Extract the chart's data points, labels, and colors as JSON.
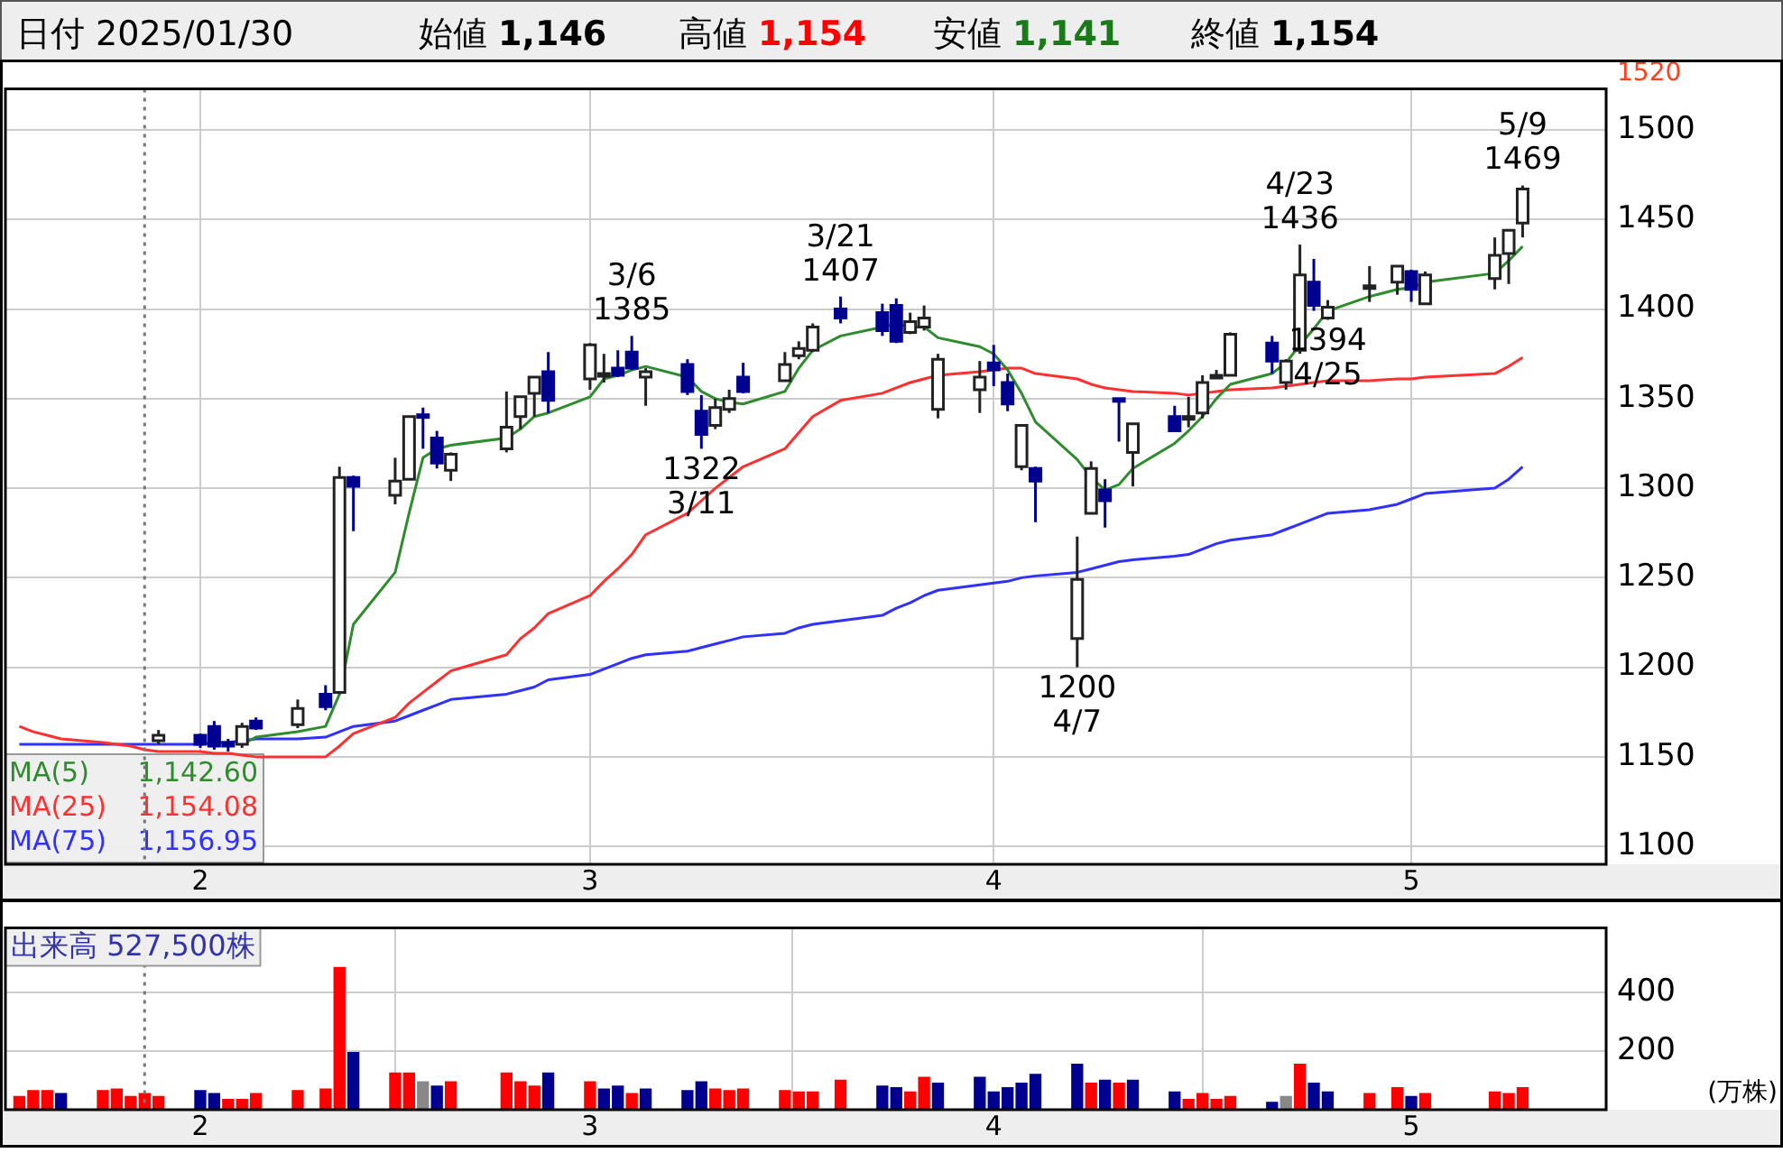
{
  "chart_data": [
    {
      "type": "candlestick",
      "x": [
        "2025-01-21",
        "2025-01-22",
        "2025-01-23",
        "2025-01-24",
        "2025-01-27",
        "2025-01-28",
        "2025-01-29",
        "2025-01-30",
        "2025-01-31",
        "2025-02-03",
        "2025-02-04",
        "2025-02-05",
        "2025-02-06",
        "2025-02-07",
        "2025-02-10",
        "2025-02-12",
        "2025-02-13",
        "2025-02-14",
        "2025-02-17",
        "2025-02-18",
        "2025-02-19",
        "2025-02-20",
        "2025-02-21",
        "2025-02-25",
        "2025-02-26",
        "2025-02-27",
        "2025-02-28",
        "2025-03-03",
        "2025-03-04",
        "2025-03-05",
        "2025-03-06",
        "2025-03-07",
        "2025-03-10",
        "2025-03-11",
        "2025-03-12",
        "2025-03-13",
        "2025-03-14",
        "2025-03-17",
        "2025-03-18",
        "2025-03-19",
        "2025-03-21",
        "2025-03-24",
        "2025-03-25",
        "2025-03-26",
        "2025-03-27",
        "2025-03-28",
        "2025-03-31",
        "2025-04-01",
        "2025-04-02",
        "2025-04-03",
        "2025-04-04",
        "2025-04-07",
        "2025-04-08",
        "2025-04-09",
        "2025-04-10",
        "2025-04-11",
        "2025-04-14",
        "2025-04-15",
        "2025-04-16",
        "2025-04-17",
        "2025-04-18",
        "2025-04-21",
        "2025-04-22",
        "2025-04-23",
        "2025-04-24",
        "2025-04-25",
        "2025-04-28",
        "2025-04-30",
        "2025-05-01",
        "2025-05-02",
        "2025-05-07",
        "2025-05-08",
        "2025-05-09"
      ],
      "ohlc": [
        null,
        null,
        null,
        null,
        null,
        null,
        null,
        null,
        [
          1159,
          1165,
          1157,
          1162
        ],
        [
          1162,
          1163,
          1155,
          1157
        ],
        [
          1167,
          1170,
          1154,
          1156
        ],
        [
          1158,
          1160,
          1153,
          1156
        ],
        [
          1157,
          1169,
          1155,
          1167
        ],
        [
          1170,
          1172,
          1165,
          1166
        ],
        [
          1168,
          1182,
          1166,
          1177
        ],
        [
          1185,
          1190,
          1176,
          1178
        ],
        [
          1186,
          1312,
          1185,
          1306
        ],
        [
          1306,
          1307,
          1276,
          1301
        ],
        [
          1296,
          1317,
          1291,
          1304
        ],
        [
          1305,
          1340,
          1305,
          1340
        ],
        [
          1341,
          1345,
          1322,
          1340
        ],
        [
          1328,
          1332,
          1311,
          1314
        ],
        [
          1310,
          1320,
          1304,
          1319
        ],
        [
          1322,
          1354,
          1320,
          1334
        ],
        [
          1340,
          1351,
          1333,
          1351
        ],
        [
          1353,
          1362,
          1340,
          1362
        ],
        [
          1365,
          1376,
          1342,
          1349
        ],
        [
          1361,
          1381,
          1355,
          1380
        ],
        [
          1363,
          1375,
          1359,
          1364
        ],
        [
          1367,
          1377,
          1362,
          1363
        ],
        [
          1376,
          1385,
          1366,
          1367
        ],
        [
          1362,
          1367,
          1346,
          1365
        ],
        [
          1369,
          1372,
          1352,
          1354
        ],
        [
          1343,
          1352,
          1322,
          1330
        ],
        [
          1335,
          1350,
          1333,
          1345
        ],
        [
          1344,
          1355,
          1342,
          1350
        ],
        [
          1362,
          1370,
          1353,
          1354
        ],
        [
          1360,
          1376,
          1360,
          1369
        ],
        [
          1374,
          1382,
          1372,
          1378
        ],
        [
          1377,
          1392,
          1376,
          1390
        ],
        [
          1400,
          1407,
          1392,
          1395
        ],
        [
          1398,
          1403,
          1385,
          1388
        ],
        [
          1402,
          1406,
          1381,
          1382
        ],
        [
          1387,
          1398,
          1386,
          1393
        ],
        [
          1390,
          1402,
          1388,
          1395
        ],
        [
          1344,
          1375,
          1339,
          1372
        ],
        [
          1355,
          1371,
          1342,
          1362
        ],
        [
          1370,
          1380,
          1357,
          1366
        ],
        [
          1359,
          1364,
          1343,
          1347
        ],
        [
          1312,
          1335,
          1310,
          1335
        ],
        [
          1311,
          1312,
          1281,
          1304
        ],
        [
          1216,
          1273,
          1200,
          1249
        ],
        [
          1286,
          1315,
          1286,
          1311
        ],
        [
          1299,
          1305,
          1278,
          1293
        ],
        [
          1350,
          1350,
          1326,
          1349
        ],
        [
          1320,
          1336,
          1301,
          1336
        ],
        [
          1340,
          1346,
          1332,
          1332
        ],
        [
          1339,
          1351,
          1334,
          1340
        ],
        [
          1342,
          1363,
          1339,
          1359
        ],
        [
          1362,
          1366,
          1361,
          1363
        ],
        [
          1363,
          1387,
          1363,
          1386
        ],
        [
          1381,
          1385,
          1364,
          1371
        ],
        [
          1359,
          1372,
          1355,
          1371
        ],
        [
          1377,
          1436,
          1375,
          1419
        ],
        [
          1415,
          1428,
          1399,
          1402
        ],
        [
          1395,
          1405,
          1394,
          1401
        ],
        [
          1412,
          1424,
          1404,
          1413
        ],
        [
          1415,
          1424,
          1408,
          1424
        ],
        [
          1421,
          1422,
          1404,
          1411
        ],
        [
          1403,
          1421,
          1403,
          1419
        ],
        [
          1417,
          1440,
          1411,
          1430
        ],
        [
          1431,
          1444,
          1414,
          1444
        ],
        [
          1448,
          1469,
          1440,
          1467
        ]
      ],
      "series": [
        {
          "type": "line",
          "name": "MA(5)",
          "color": "#2e8b2e",
          "values": [
            null,
            null,
            null,
            null,
            null,
            null,
            null,
            null,
            null,
            null,
            null,
            null,
            1157,
            1161,
            1164,
            1167,
            1185,
            1224,
            1253,
            1286,
            1317,
            1322,
            1324,
            1328,
            1333,
            1340,
            1342,
            1351,
            1361,
            1363,
            1366,
            1368,
            1362,
            1354,
            1350,
            1348,
            1347,
            1354,
            1367,
            1377,
            1385,
            1390,
            1392,
            1390,
            1390,
            1384,
            1379,
            1375,
            1366,
            1353,
            1337,
            1316,
            1306,
            1299,
            1302,
            1311,
            1325,
            1332,
            1340,
            1350,
            1358,
            1364,
            1370,
            1380,
            1389,
            1399,
            1407,
            1411,
            1412,
            1415,
            1420,
            1427,
            1435
          ]
        },
        {
          "type": "line",
          "name": "MA(25)",
          "color": "#ff3030",
          "values": [
            1167,
            1164,
            1162,
            1160,
            1158,
            1157,
            1156,
            1154,
            1153,
            1153,
            1152,
            1152,
            1151,
            1150,
            1150,
            1150,
            1156,
            1163,
            1172,
            1180,
            1186,
            1192,
            1198,
            1207,
            1216,
            1222,
            1230,
            1240,
            1248,
            1255,
            1263,
            1274,
            1286,
            1293,
            1300,
            1306,
            1312,
            1322,
            1331,
            1340,
            1349,
            1353,
            1356,
            1359,
            1361,
            1363,
            1365,
            1366,
            1367,
            1367,
            1364,
            1361,
            1358,
            1356,
            1355,
            1354,
            1353,
            1352,
            1353,
            1354,
            1355,
            1356,
            1357,
            1358,
            1359,
            1360,
            1360,
            1361,
            1361,
            1362,
            1364,
            1368,
            1373
          ]
        },
        {
          "type": "line",
          "name": "MA(75)",
          "color": "#3030ff",
          "values": [
            1157,
            1157,
            1157,
            1157,
            1157,
            1157,
            1157,
            1157,
            1157,
            1157,
            1158,
            1158,
            1159,
            1160,
            1160,
            1161,
            1164,
            1167,
            1170,
            1173,
            1176,
            1179,
            1182,
            1185,
            1187,
            1189,
            1193,
            1196,
            1199,
            1202,
            1205,
            1207,
            1209,
            1211,
            1213,
            1215,
            1217,
            1219,
            1222,
            1224,
            1226,
            1229,
            1233,
            1236,
            1240,
            1243,
            1246,
            1247,
            1248,
            1250,
            1251,
            1253,
            1255,
            1257,
            1259,
            1260,
            1262,
            1263,
            1266,
            1269,
            1271,
            1274,
            1277,
            1280,
            1283,
            1286,
            1288,
            1291,
            1294,
            1297,
            1300,
            1305,
            1312
          ]
        }
      ],
      "xlim": [
        "2025-01-20",
        "2025-05-15"
      ],
      "ylim": [
        1090,
        1523
      ],
      "yticks": [
        1100,
        1150,
        1200,
        1250,
        1300,
        1350,
        1400,
        1450,
        1500
      ],
      "xticks": [
        {
          "value": "2025-02-03",
          "label": "2"
        },
        {
          "value": "2025-03-03",
          "label": "3"
        },
        {
          "value": "2025-04-01",
          "label": "4"
        },
        {
          "value": "2025-05-01",
          "label": "5"
        }
      ],
      "grid": true,
      "legend": "bottom left",
      "ref_lines": [
        {
          "axis": "x",
          "value": "2025-01-30",
          "color": "#777777",
          "line_style": "dotted"
        }
      ],
      "annotations": [
        "日付 2025/01/30",
        "始値 1,146",
        "高値 1,154",
        "安値 1,141",
        "終値 1,154",
        "1,142.60",
        "1,154.08",
        "1,156.95",
        "1520",
        {
          "text": "3/6 1385",
          "x": "2025-03-06",
          "y": 1385
        },
        {
          "text": "1322 3/11",
          "x": "2025-03-11",
          "y": 1322
        },
        {
          "text": "3/21 1407",
          "x": "2025-03-21",
          "y": 1407
        },
        {
          "text": "1200 4/7",
          "x": "2025-04-07",
          "y": 1200
        },
        {
          "text": "4/23 1436",
          "x": "2025-04-23",
          "y": 1436
        },
        {
          "text": "1394 4/25",
          "x": "2025-04-25",
          "y": 1394
        },
        {
          "text": "5/9 1469",
          "x": "2025-05-09",
          "y": 1469
        }
      ]
    },
    {
      "type": "bar",
      "x": [
        "2025-01-21",
        "2025-01-22",
        "2025-01-23",
        "2025-01-24",
        "2025-01-27",
        "2025-01-28",
        "2025-01-29",
        "2025-01-30",
        "2025-01-31",
        "2025-02-03",
        "2025-02-04",
        "2025-02-05",
        "2025-02-06",
        "2025-02-07",
        "2025-02-10",
        "2025-02-12",
        "2025-02-13",
        "2025-02-14",
        "2025-02-17",
        "2025-02-18",
        "2025-02-19",
        "2025-02-20",
        "2025-02-21",
        "2025-02-25",
        "2025-02-26",
        "2025-02-27",
        "2025-02-28",
        "2025-03-03",
        "2025-03-04",
        "2025-03-05",
        "2025-03-06",
        "2025-03-07",
        "2025-03-10",
        "2025-03-11",
        "2025-03-12",
        "2025-03-13",
        "2025-03-14",
        "2025-03-17",
        "2025-03-18",
        "2025-03-19",
        "2025-03-21",
        "2025-03-24",
        "2025-03-25",
        "2025-03-26",
        "2025-03-27",
        "2025-03-28",
        "2025-03-31",
        "2025-04-01",
        "2025-04-02",
        "2025-04-03",
        "2025-04-04",
        "2025-04-07",
        "2025-04-08",
        "2025-04-09",
        "2025-04-10",
        "2025-04-11",
        "2025-04-14",
        "2025-04-15",
        "2025-04-16",
        "2025-04-17",
        "2025-04-18",
        "2025-04-21",
        "2025-04-22",
        "2025-04-23",
        "2025-04-24",
        "2025-04-25",
        "2025-04-28",
        "2025-04-30",
        "2025-05-01",
        "2025-05-02",
        "2025-05-07",
        "2025-05-08",
        "2025-05-09"
      ],
      "values": [
        45,
        65,
        65,
        55,
        65,
        70,
        45,
        55,
        45,
        65,
        55,
        35,
        35,
        55,
        65,
        70,
        485,
        195,
        125,
        125,
        95,
        80,
        95,
        125,
        95,
        80,
        125,
        95,
        70,
        80,
        55,
        70,
        65,
        95,
        70,
        65,
        70,
        65,
        60,
        60,
        100,
        80,
        75,
        60,
        110,
        90,
        110,
        60,
        75,
        90,
        120,
        155,
        90,
        100,
        90,
        100,
        60,
        35,
        55,
        35,
        45,
        25,
        45,
        155,
        90,
        60,
        55,
        75,
        45,
        55,
        60,
        55,
        75
      ],
      "colors": [
        "#ff0000",
        "#ff0000",
        "#ff0000",
        "#000090",
        "#ff0000",
        "#ff0000",
        "#ff0000",
        "#ff0000",
        "#ff0000",
        "#000090",
        "#000090",
        "#ff0000",
        "#ff0000",
        "#ff0000",
        "#ff0000",
        "#ff0000",
        "#ff0000",
        "#000090",
        "#ff0000",
        "#ff0000",
        "#888888",
        "#000090",
        "#ff0000",
        "#ff0000",
        "#ff0000",
        "#ff0000",
        "#000090",
        "#ff0000",
        "#000090",
        "#000090",
        "#ff0000",
        "#000090",
        "#000090",
        "#000090",
        "#ff0000",
        "#ff0000",
        "#ff0000",
        "#ff0000",
        "#ff0000",
        "#ff0000",
        "#ff0000",
        "#000090",
        "#000090",
        "#ff0000",
        "#ff0000",
        "#000090",
        "#000090",
        "#000090",
        "#000090",
        "#000090",
        "#000090",
        "#000090",
        "#ff0000",
        "#000090",
        "#ff0000",
        "#000090",
        "#000090",
        "#ff0000",
        "#ff0000",
        "#ff0000",
        "#ff0000",
        "#000090",
        "#888888",
        "#ff0000",
        "#000090",
        "#000090",
        "#ff0000",
        "#ff0000",
        "#000090",
        "#ff0000",
        "#ff0000",
        "#ff0000",
        "#ff0000"
      ],
      "xlim": [
        "2025-01-20",
        "2025-05-15"
      ],
      "ylim": [
        0,
        620
      ],
      "yticks": [
        200,
        400
      ],
      "ylabel": "(万株)",
      "xticks": [
        {
          "value": "2025-02-03",
          "label": "2"
        },
        {
          "value": "2025-03-03",
          "label": "3"
        },
        {
          "value": "2025-04-01",
          "label": "4"
        },
        {
          "value": "2025-05-01",
          "label": "5"
        }
      ],
      "grid": true,
      "ref_lines": [
        {
          "axis": "x",
          "value": "2025-01-30",
          "color": "#777777",
          "line_style": "dotted"
        }
      ],
      "annotations": [
        "出来高 527,500株"
      ]
    }
  ]
}
